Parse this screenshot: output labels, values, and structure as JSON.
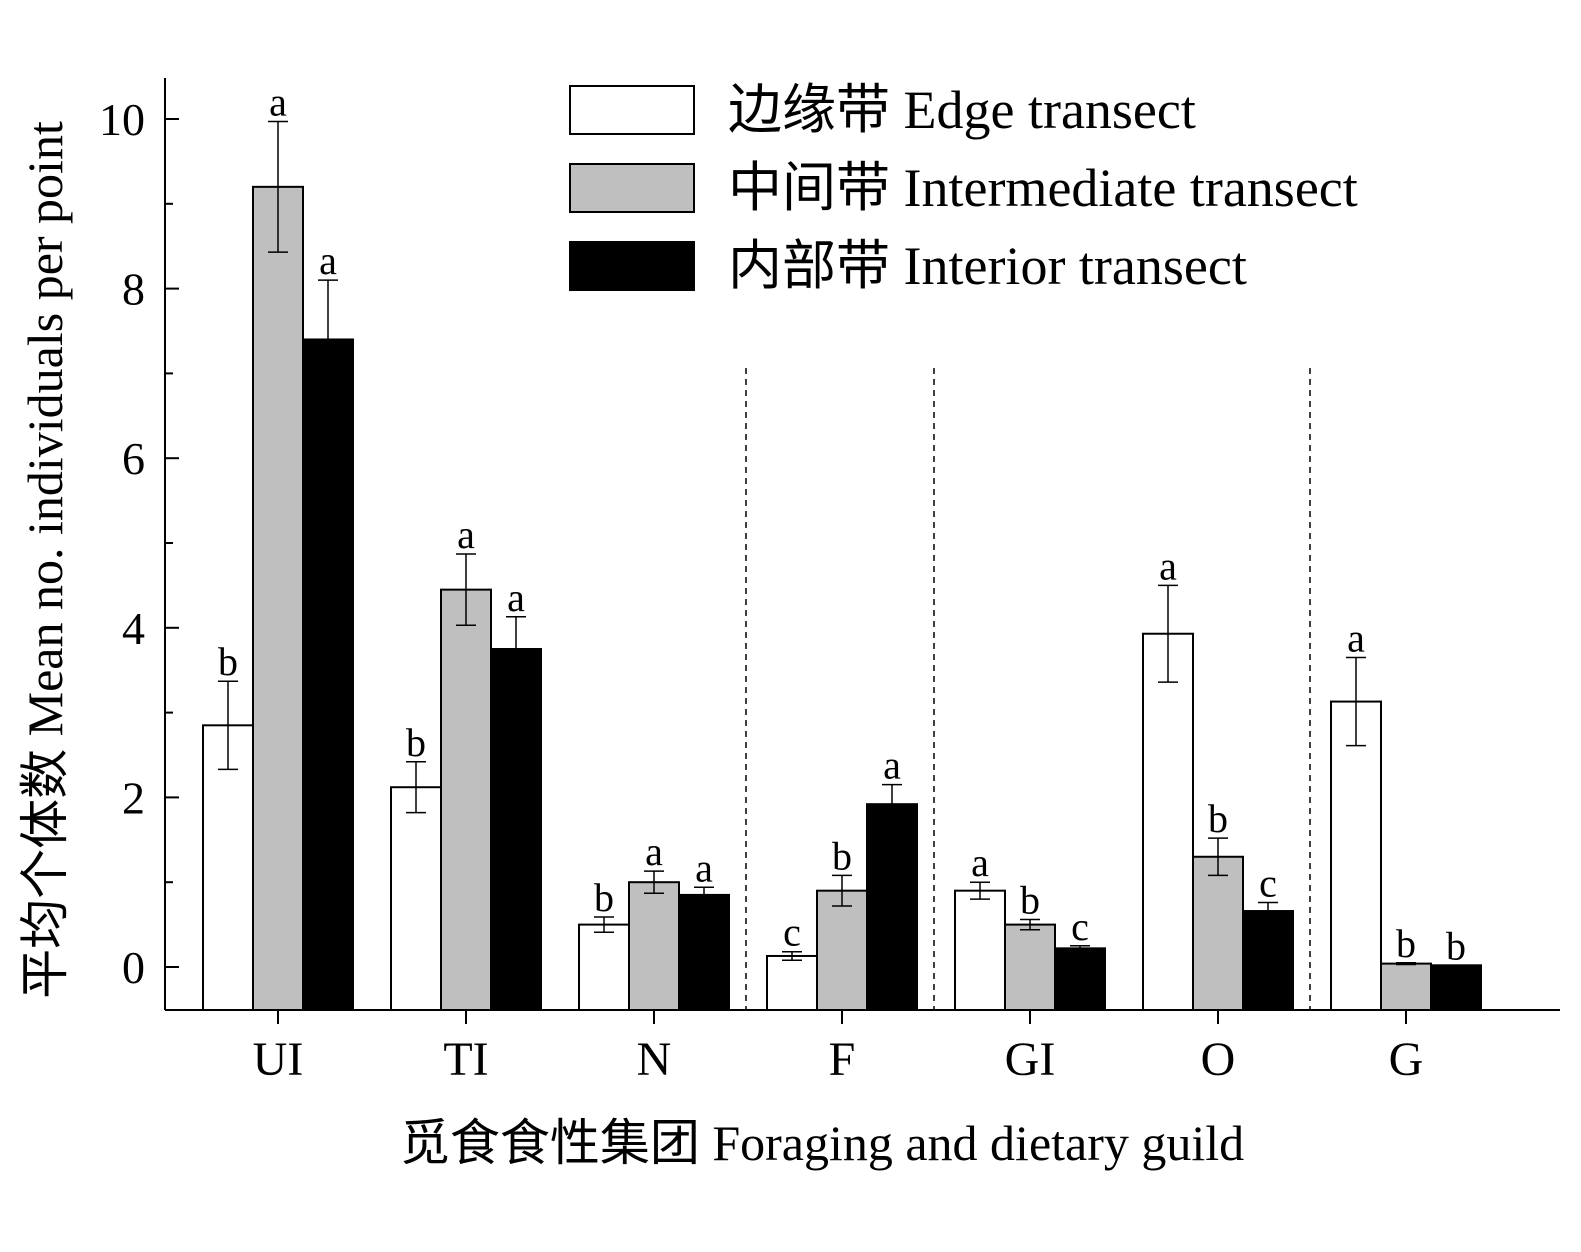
{
  "chart_data": {
    "type": "bar",
    "title": "",
    "xlabel": "觅食食性集团 Foraging and dietary guild",
    "ylabel": "平均个体数 Mean no. individuals per point",
    "categories": [
      "UI",
      "TI",
      "N",
      "F",
      "GI",
      "O",
      "G"
    ],
    "ylim": [
      -0.5,
      10.5
    ],
    "yticks": [
      0,
      2,
      4,
      6,
      8,
      10
    ],
    "grid": false,
    "legend_position": "top-right",
    "series": [
      {
        "name": "边缘带 Edge transect",
        "color": "#ffffff",
        "values": [
          2.85,
          2.12,
          0.5,
          0.13,
          0.9,
          3.93,
          3.13
        ],
        "errors": [
          0.52,
          0.3,
          0.09,
          0.05,
          0.1,
          0.57,
          0.52
        ],
        "labels": [
          "b",
          "b",
          "b",
          "c",
          "a",
          "a",
          "a"
        ]
      },
      {
        "name": "中间带 Intermediate transect",
        "color": "#bfbfbf",
        "values": [
          9.2,
          4.45,
          1.0,
          0.9,
          0.5,
          1.3,
          0.04
        ],
        "errors": [
          0.77,
          0.42,
          0.13,
          0.18,
          0.06,
          0.22,
          0.01
        ],
        "labels": [
          "a",
          "a",
          "a",
          "b",
          "b",
          "b",
          "b"
        ]
      },
      {
        "name": "内部带 Interior transect",
        "color": "#000000",
        "values": [
          7.4,
          3.75,
          0.85,
          1.92,
          0.22,
          0.66,
          0.02
        ],
        "errors": [
          0.7,
          0.38,
          0.09,
          0.23,
          0.03,
          0.1,
          0.0
        ],
        "labels": [
          "a",
          "a",
          "a",
          "a",
          "c",
          "c",
          "b"
        ]
      }
    ],
    "dividers_after_categories": [
      "N",
      "F",
      "O"
    ]
  }
}
